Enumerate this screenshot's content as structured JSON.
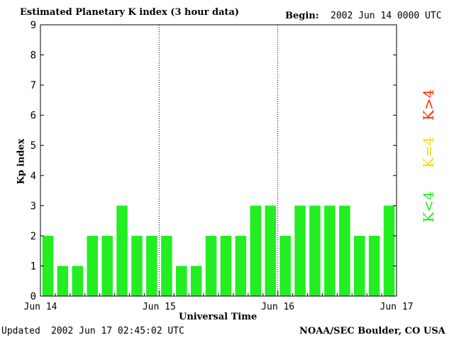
{
  "header": {
    "title": "Estimated Planetary K index (3 hour data)",
    "begin_label": "Begin:",
    "begin_value": "2002 Jun 14 0000 UTC"
  },
  "footer": {
    "updated_label": "Updated",
    "updated_value": "2002 Jun 17 02:45:02 UTC",
    "credit": "NOAA/SEC Boulder, CO USA"
  },
  "legend": {
    "high": {
      "text": "K>4",
      "color": "#ff2a00"
    },
    "equal": {
      "text": "K=4",
      "color": "#ffd700"
    },
    "low": {
      "text": "K<4",
      "color": "#22ee22"
    }
  },
  "chart_data": {
    "type": "bar",
    "xlabel": "Universal Time",
    "ylabel": "Kp index",
    "ylim": [
      0,
      9
    ],
    "yticks": [
      "0",
      "1",
      "2",
      "3",
      "4",
      "5",
      "6",
      "7",
      "8",
      "9"
    ],
    "day_labels": [
      "Jun 14",
      "Jun 15",
      "Jun 16",
      "Jun 17"
    ],
    "interval": "3 hour",
    "values": [
      2,
      1,
      1,
      2,
      2,
      3,
      2,
      2,
      2,
      1,
      1,
      2,
      2,
      2,
      3,
      3,
      2,
      3,
      3,
      3,
      3,
      2,
      2,
      3
    ],
    "bar_color": "#22ee22",
    "grid": false
  }
}
